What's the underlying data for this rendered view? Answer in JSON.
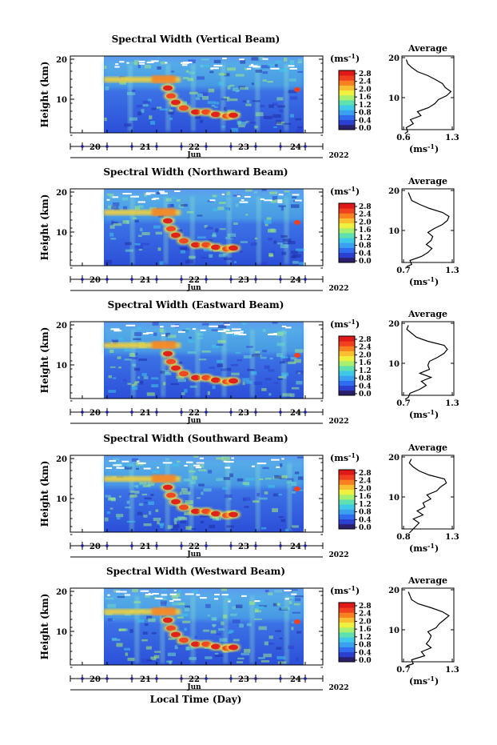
{
  "colorbar": {
    "unit": "(ms",
    "unit_sup": "-1",
    "unit_close": ")",
    "ticks": [
      "2.8",
      "2.4",
      "2.0",
      "1.6",
      "1.2",
      "0.8",
      "0.4",
      "0.0"
    ],
    "colors": [
      "#2a1f6b",
      "#2b3fd0",
      "#2f6cf0",
      "#3aa0f0",
      "#40c8e8",
      "#5ee0b0",
      "#a8f070",
      "#f0f040",
      "#f8c030",
      "#f88020",
      "#f04020",
      "#e01818"
    ]
  },
  "time_axis": {
    "day_labels": [
      "20",
      "21",
      "22",
      "23",
      "24"
    ],
    "month_label": "Jun",
    "year_label": "2022",
    "xlabel": "Local Time (Day)"
  },
  "height_axis": {
    "label": "Height (km)",
    "ticks": [
      "20",
      "10"
    ]
  },
  "avg_panel": {
    "title": "Average",
    "unit": "(ms",
    "unit_sup": "-1",
    "unit_close": ")",
    "ytick_labels": [
      "20",
      "10"
    ]
  },
  "chart_data": [
    {
      "type": "heatmap",
      "title": "Spectral Width (Vertical Beam)",
      "avg_xlim_labels": [
        "0.6",
        "1.3"
      ],
      "avg_xlim": [
        0.6,
        1.3
      ],
      "avg_profile": [
        [
          1.0,
          0.62
        ],
        [
          1.5,
          0.66
        ],
        [
          2.5,
          0.64
        ],
        [
          3.5,
          0.74
        ],
        [
          4.5,
          0.7
        ],
        [
          5.5,
          0.85
        ],
        [
          6.5,
          0.8
        ],
        [
          7.5,
          0.96
        ],
        [
          8.5,
          1.05
        ],
        [
          9.5,
          1.1
        ],
        [
          10.5,
          1.22
        ],
        [
          11.5,
          1.28
        ],
        [
          12.5,
          1.2
        ],
        [
          13.5,
          1.16
        ],
        [
          14.5,
          1.06
        ],
        [
          15.5,
          0.95
        ],
        [
          16.5,
          0.8
        ],
        [
          17.5,
          0.72
        ],
        [
          18.5,
          0.66
        ],
        [
          19.5,
          0.64
        ]
      ]
    },
    {
      "type": "heatmap",
      "title": "Spectral Width (Northward Beam)",
      "avg_xlim_labels": [
        "0.7",
        "1.3"
      ],
      "avg_xlim": [
        0.7,
        1.3
      ],
      "avg_profile": [
        [
          1.0,
          0.74
        ],
        [
          1.5,
          0.8
        ],
        [
          2.5,
          0.78
        ],
        [
          3.5,
          0.92
        ],
        [
          4.5,
          1.0
        ],
        [
          5.5,
          1.05
        ],
        [
          6.5,
          0.98
        ],
        [
          7.5,
          1.04
        ],
        [
          8.5,
          1.06
        ],
        [
          9.5,
          1.0
        ],
        [
          10.5,
          1.08
        ],
        [
          11.5,
          1.18
        ],
        [
          12.5,
          1.24
        ],
        [
          13.5,
          1.26
        ],
        [
          14.5,
          1.18
        ],
        [
          15.5,
          1.02
        ],
        [
          16.5,
          0.9
        ],
        [
          17.5,
          0.8
        ],
        [
          18.5,
          0.78
        ],
        [
          19.5,
          0.76
        ]
      ]
    },
    {
      "type": "heatmap",
      "title": "Spectral Width (Eastward Beam)",
      "avg_xlim_labels": [
        "0.7",
        "1.3"
      ],
      "avg_xlim": [
        0.7,
        1.3
      ],
      "avg_profile": [
        [
          1.0,
          0.72
        ],
        [
          1.5,
          0.76
        ],
        [
          2.5,
          0.78
        ],
        [
          3.5,
          0.9
        ],
        [
          4.5,
          0.98
        ],
        [
          5.5,
          0.92
        ],
        [
          6.5,
          1.04
        ],
        [
          7.5,
          0.9
        ],
        [
          8.5,
          1.02
        ],
        [
          9.5,
          1.0
        ],
        [
          10.5,
          1.02
        ],
        [
          11.5,
          1.12
        ],
        [
          12.5,
          1.2
        ],
        [
          13.5,
          1.24
        ],
        [
          14.5,
          1.2
        ],
        [
          15.5,
          1.0
        ],
        [
          16.5,
          0.86
        ],
        [
          17.5,
          0.8
        ],
        [
          18.5,
          0.74
        ],
        [
          19.5,
          0.76
        ]
      ]
    },
    {
      "type": "heatmap",
      "title": "Spectral Width (Southward Beam)",
      "avg_xlim_labels": [
        "0.8",
        "1.3"
      ],
      "avg_xlim": [
        0.8,
        1.3
      ],
      "avg_profile": [
        [
          1.0,
          0.86
        ],
        [
          1.5,
          0.88
        ],
        [
          2.5,
          0.92
        ],
        [
          3.5,
          0.96
        ],
        [
          4.5,
          0.9
        ],
        [
          5.5,
          1.0
        ],
        [
          6.5,
          0.94
        ],
        [
          7.5,
          1.02
        ],
        [
          8.5,
          1.0
        ],
        [
          9.5,
          1.08
        ],
        [
          10.5,
          1.04
        ],
        [
          11.5,
          1.14
        ],
        [
          12.5,
          1.18
        ],
        [
          13.5,
          1.24
        ],
        [
          14.5,
          1.22
        ],
        [
          15.5,
          1.06
        ],
        [
          16.5,
          0.96
        ],
        [
          17.5,
          0.9
        ],
        [
          18.5,
          0.86
        ],
        [
          19.5,
          0.88
        ]
      ]
    },
    {
      "type": "heatmap",
      "title": "Spectral Width (Westward Beam)",
      "avg_xlim_labels": [
        "0.7",
        "1.3"
      ],
      "avg_xlim": [
        0.7,
        1.3
      ],
      "avg_profile": [
        [
          1.0,
          0.74
        ],
        [
          1.5,
          0.82
        ],
        [
          2.5,
          0.8
        ],
        [
          3.5,
          0.96
        ],
        [
          4.5,
          0.92
        ],
        [
          5.5,
          1.04
        ],
        [
          6.5,
          0.98
        ],
        [
          7.5,
          1.02
        ],
        [
          8.5,
          1.04
        ],
        [
          9.5,
          1.0
        ],
        [
          10.5,
          1.1
        ],
        [
          11.5,
          1.14
        ],
        [
          12.5,
          1.2
        ],
        [
          13.5,
          1.26
        ],
        [
          14.5,
          1.18
        ],
        [
          15.5,
          1.04
        ],
        [
          16.5,
          0.88
        ],
        [
          17.5,
          0.8
        ],
        [
          18.5,
          0.78
        ],
        [
          19.5,
          0.76
        ]
      ]
    }
  ]
}
